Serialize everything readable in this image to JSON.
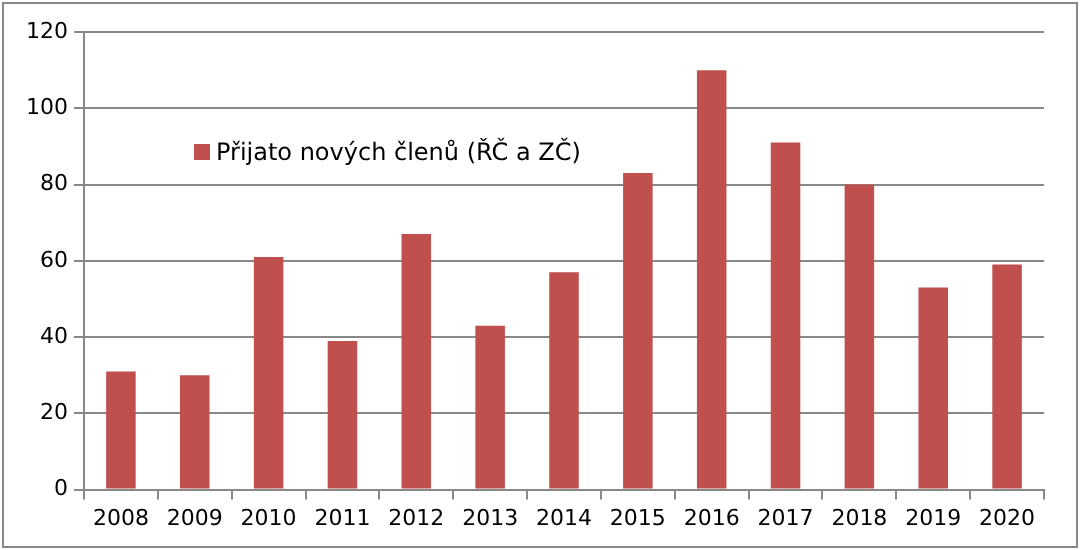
{
  "chart_data": {
    "type": "bar",
    "categories": [
      "2008",
      "2009",
      "2010",
      "2011",
      "2012",
      "2013",
      "2014",
      "2015",
      "2016",
      "2017",
      "2018",
      "2019",
      "2020"
    ],
    "series": [
      {
        "name": "Přijato nových členů (ŘČ a ZČ)",
        "color": "#c0504d",
        "values": [
          31,
          30,
          61,
          39,
          67,
          43,
          57,
          83,
          110,
          91,
          80,
          53,
          59
        ]
      }
    ],
    "ylim": [
      0,
      120
    ],
    "yticks": [
      0,
      20,
      40,
      60,
      80,
      100,
      120
    ],
    "grid": "y",
    "legend": "top left"
  }
}
